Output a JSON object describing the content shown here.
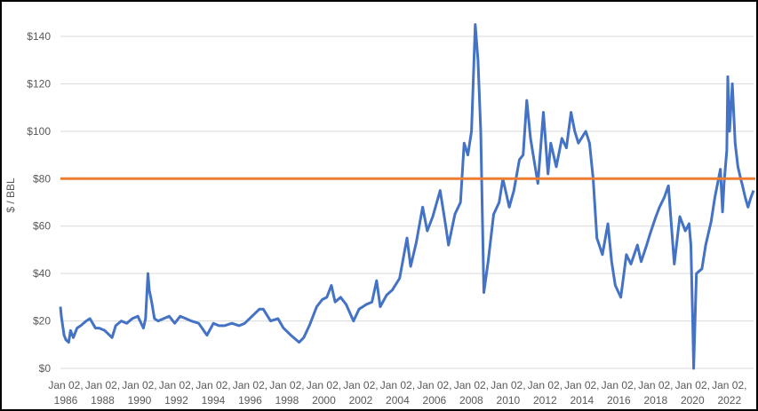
{
  "chart_data": {
    "type": "line",
    "title": "",
    "xlabel": "",
    "ylabel": "$ / BBL",
    "ylim": [
      0,
      140
    ],
    "xlim": [
      1986.0,
      2023.6
    ],
    "grid": "horizontal",
    "legend": "none",
    "y_ticks": [
      "$0",
      "$20",
      "$40",
      "$60",
      "$80",
      "$100",
      "$120",
      "$140"
    ],
    "y_tick_values": [
      0,
      20,
      40,
      60,
      80,
      100,
      120,
      140
    ],
    "x_tick_years": [
      1986,
      1988,
      1990,
      1992,
      1994,
      1996,
      1998,
      2000,
      2002,
      2004,
      2006,
      2008,
      2010,
      2012,
      2014,
      2016,
      2018,
      2020,
      2022
    ],
    "x_tick_prefix": "Jan 02,",
    "colors": {
      "series": "#4472C4",
      "reference": "#ED7D31",
      "grid": "#D9D9D9"
    },
    "reference_line": {
      "y": 80
    },
    "series": [
      {
        "x": [
          1986.0,
          1986.05,
          1986.2,
          1986.3,
          1986.45,
          1986.55,
          1986.7,
          1986.9,
          1987.1,
          1987.4,
          1987.6,
          1987.9,
          1988.1,
          1988.4,
          1988.8,
          1989.0,
          1989.3,
          1989.6,
          1989.9,
          1990.2,
          1990.5,
          1990.62,
          1990.75,
          1990.82,
          1990.95,
          1991.1,
          1991.3,
          1991.6,
          1991.9,
          1992.2,
          1992.5,
          1992.8,
          1993.1,
          1993.5,
          1993.95,
          1994.3,
          1994.6,
          1994.9,
          1995.3,
          1995.7,
          1996.0,
          1996.4,
          1996.8,
          1997.0,
          1997.4,
          1997.8,
          1998.1,
          1998.5,
          1998.95,
          1999.2,
          1999.5,
          1999.9,
          2000.2,
          2000.45,
          2000.7,
          2000.9,
          2001.2,
          2001.5,
          2001.9,
          2002.2,
          2002.6,
          2002.9,
          2003.15,
          2003.35,
          2003.7,
          2004.0,
          2004.4,
          2004.8,
          2005.0,
          2005.3,
          2005.65,
          2005.9,
          2006.2,
          2006.6,
          2006.9,
          2007.05,
          2007.4,
          2007.7,
          2007.9,
          2008.1,
          2008.3,
          2008.5,
          2008.65,
          2008.8,
          2008.97,
          2009.2,
          2009.5,
          2009.8,
          2010.0,
          2010.35,
          2010.6,
          2010.9,
          2011.1,
          2011.3,
          2011.5,
          2011.75,
          2011.9,
          2012.2,
          2012.45,
          2012.6,
          2012.9,
          2013.2,
          2013.45,
          2013.7,
          2013.9,
          2014.1,
          2014.5,
          2014.7,
          2014.9,
          2015.1,
          2015.4,
          2015.7,
          2015.9,
          2016.1,
          2016.4,
          2016.7,
          2016.95,
          2017.3,
          2017.5,
          2017.8,
          2018.0,
          2018.3,
          2018.5,
          2018.75,
          2018.98,
          2019.3,
          2019.6,
          2019.9,
          2020.1,
          2020.2,
          2020.3,
          2020.35,
          2020.5,
          2020.8,
          2021.0,
          2021.3,
          2021.5,
          2021.8,
          2021.92,
          2022.0,
          2022.15,
          2022.2,
          2022.3,
          2022.45,
          2022.6,
          2022.75,
          2022.9,
          2023.0,
          2023.15,
          2023.3,
          2023.45,
          2023.6
        ],
        "values": [
          26,
          22,
          14,
          12,
          11,
          16,
          13,
          17,
          18,
          20,
          21,
          17,
          17,
          16,
          13,
          18,
          20,
          19,
          21,
          22,
          17,
          21,
          40,
          33,
          28,
          21,
          20,
          21,
          22,
          19,
          22,
          21,
          20,
          19,
          14,
          19,
          18,
          18,
          19,
          18,
          19,
          22,
          25,
          25,
          20,
          21,
          17,
          14,
          11,
          13,
          18,
          26,
          29,
          30,
          35,
          28,
          30,
          27,
          20,
          25,
          27,
          28,
          37,
          26,
          31,
          33,
          38,
          55,
          43,
          53,
          68,
          58,
          64,
          75,
          60,
          52,
          65,
          70,
          95,
          90,
          100,
          145,
          130,
          100,
          32,
          45,
          65,
          70,
          80,
          68,
          75,
          88,
          90,
          113,
          97,
          85,
          78,
          108,
          82,
          95,
          85,
          97,
          93,
          108,
          100,
          95,
          100,
          95,
          80,
          55,
          48,
          61,
          45,
          35,
          30,
          48,
          44,
          52,
          45,
          52,
          57,
          64,
          68,
          72,
          77,
          44,
          64,
          58,
          61,
          52,
          20,
          0,
          40,
          42,
          52,
          62,
          72,
          84,
          66,
          78,
          92,
          123,
          100,
          120,
          95,
          85,
          80,
          77,
          72,
          68,
          72,
          75
        ]
      }
    ]
  }
}
